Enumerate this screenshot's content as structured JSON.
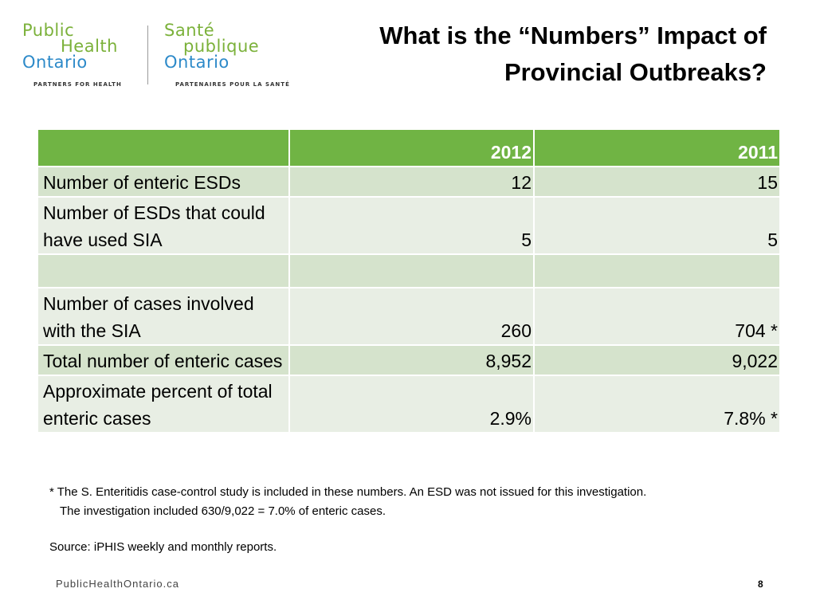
{
  "logo": {
    "en_line1": "Public",
    "en_line2": "Health",
    "en_line3": "Ontario",
    "en_tagline": "PARTNERS FOR HEALTH",
    "fr_line1": "Santé",
    "fr_line2": "publique",
    "fr_line3": "Ontario",
    "fr_tagline": "PARTENAIRES POUR LA SANTÉ",
    "green": "#7bb13a",
    "blue": "#2d8ac9"
  },
  "title_line1": "What is the “Numbers” Impact of",
  "title_line2": "Provincial Outbreaks?",
  "table": {
    "header_color": "#70b444",
    "columns": [
      "",
      "2012",
      "2011"
    ],
    "rows": [
      {
        "label": "Number of enteric ESDs",
        "v2012": "12",
        "v2011": "15"
      },
      {
        "label": "Number of ESDs that could have used SIA",
        "v2012": "5",
        "v2011": "5"
      },
      {
        "label": "",
        "v2012": "",
        "v2011": ""
      },
      {
        "label": "Number of cases involved with the SIA",
        "v2012": "260",
        "v2011": "704 *"
      },
      {
        "label": "Total number of enteric cases",
        "v2012": "8,952",
        "v2011": "9,022"
      },
      {
        "label": "Approximate percent of total enteric cases",
        "v2012": "2.9%",
        "v2011": "7.8% *"
      }
    ]
  },
  "footnote_line1": "* The S. Enteritidis case-control study is included in these numbers. An ESD was not issued for this investigation.",
  "footnote_line2": "The investigation included 630/9,022 = 7.0% of enteric cases.",
  "source": "Source: iPHIS weekly and monthly reports.",
  "website": "PublicHealthOntario.ca",
  "page_number": "8"
}
